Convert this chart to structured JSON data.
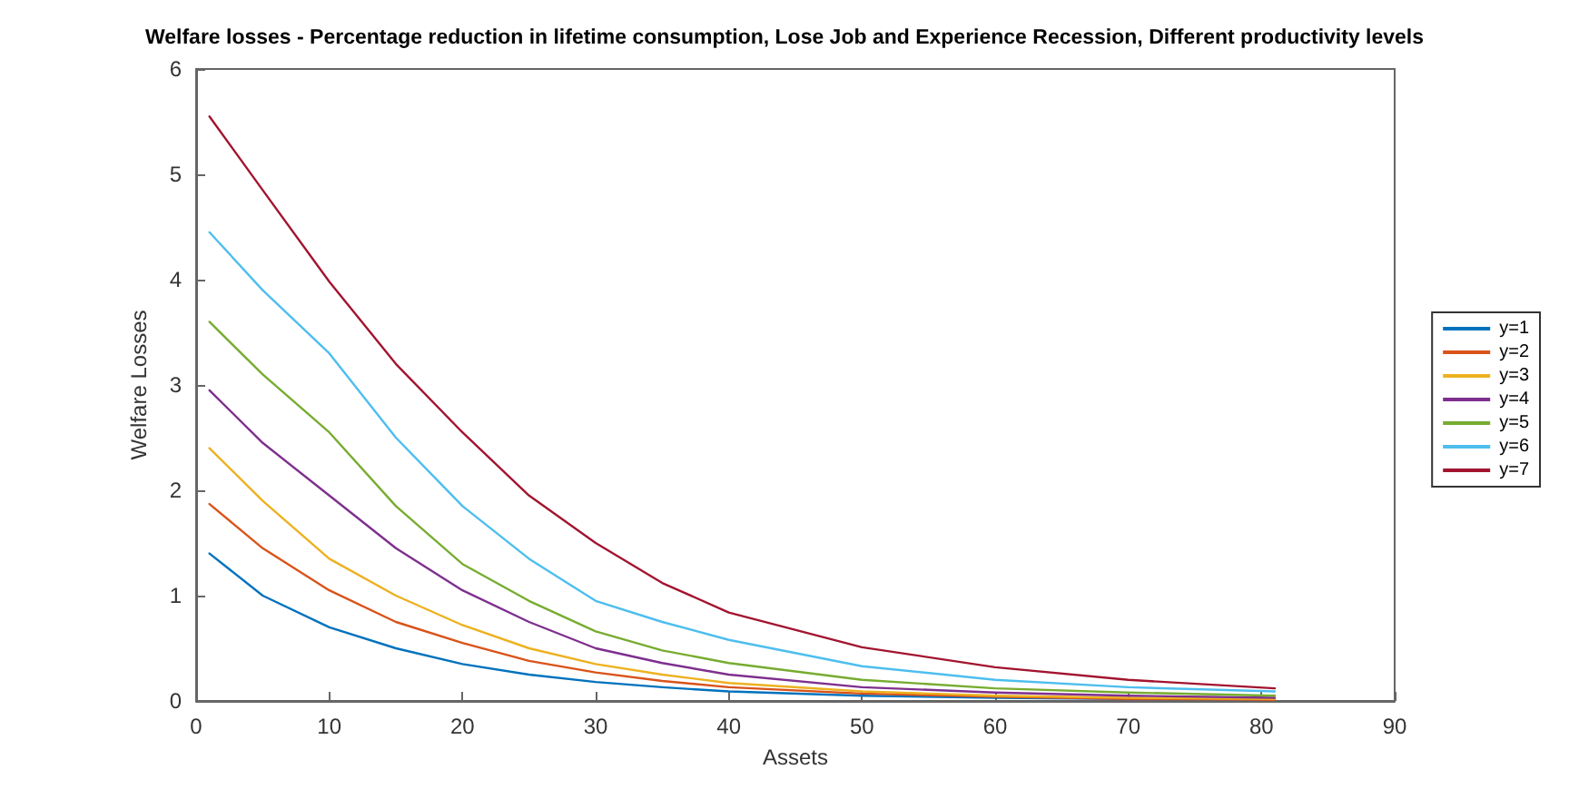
{
  "chart_data": {
    "type": "line",
    "title": "Welfare losses - Percentage reduction in lifetime consumption, Lose Job and Experience Recession, Different productivity levels",
    "xlabel": "Assets",
    "ylabel": "Welfare Losses",
    "x": [
      1,
      5,
      10,
      15,
      20,
      25,
      30,
      35,
      40,
      50,
      60,
      70,
      81
    ],
    "series": [
      {
        "name": "y=1",
        "color": "#0072bd",
        "values": [
          1.4,
          1.0,
          0.7,
          0.5,
          0.35,
          0.25,
          0.18,
          0.13,
          0.09,
          0.05,
          0.03,
          0.02,
          0.01
        ]
      },
      {
        "name": "y=2",
        "color": "#d95319",
        "values": [
          1.87,
          1.45,
          1.05,
          0.75,
          0.55,
          0.38,
          0.27,
          0.19,
          0.13,
          0.07,
          0.04,
          0.02,
          0.01
        ]
      },
      {
        "name": "y=3",
        "color": "#edb120",
        "values": [
          2.4,
          1.9,
          1.35,
          1.0,
          0.72,
          0.5,
          0.35,
          0.25,
          0.17,
          0.09,
          0.05,
          0.03,
          0.02
        ]
      },
      {
        "name": "y=4",
        "color": "#7e2f8e",
        "values": [
          2.95,
          2.45,
          1.95,
          1.45,
          1.05,
          0.75,
          0.5,
          0.36,
          0.25,
          0.13,
          0.08,
          0.05,
          0.03
        ]
      },
      {
        "name": "y=5",
        "color": "#77ac30",
        "values": [
          3.6,
          3.1,
          2.55,
          1.85,
          1.3,
          0.95,
          0.66,
          0.48,
          0.36,
          0.2,
          0.12,
          0.08,
          0.05
        ]
      },
      {
        "name": "y=6",
        "color": "#4dbeee",
        "values": [
          4.45,
          3.9,
          3.3,
          2.5,
          1.85,
          1.35,
          0.95,
          0.75,
          0.58,
          0.33,
          0.2,
          0.13,
          0.09
        ]
      },
      {
        "name": "y=7",
        "color": "#a2142f",
        "values": [
          5.55,
          4.85,
          3.98,
          3.2,
          2.55,
          1.95,
          1.5,
          1.12,
          0.84,
          0.51,
          0.32,
          0.2,
          0.12
        ]
      }
    ],
    "xlim": [
      0,
      90
    ],
    "xticks": [
      0,
      10,
      20,
      30,
      40,
      50,
      60,
      70,
      80,
      90
    ],
    "ylim": [
      0,
      6
    ],
    "yticks": [
      0,
      1,
      2,
      3,
      4,
      5,
      6
    ],
    "grid": false,
    "legend": "right",
    "marker": "none",
    "line_style": "solid"
  }
}
